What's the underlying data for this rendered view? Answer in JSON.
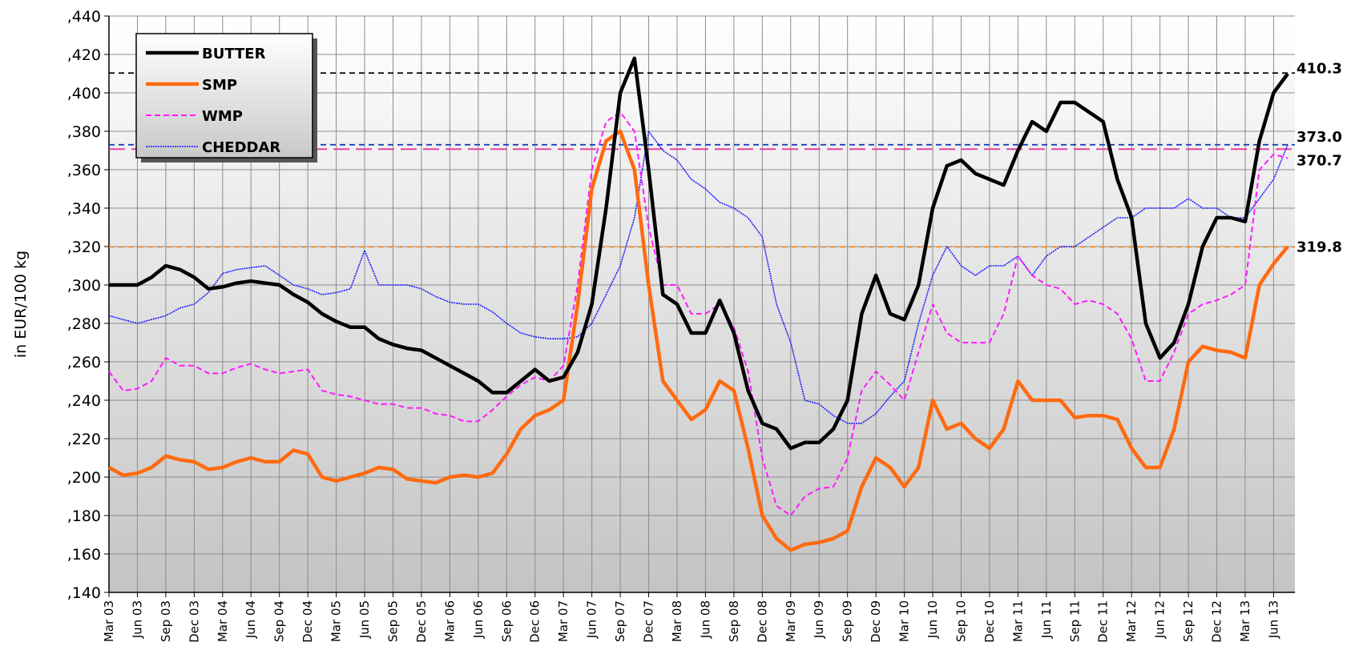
{
  "chart_data": {
    "type": "line",
    "y_label": "in EUR/100 kg",
    "ylim": [
      140,
      440
    ],
    "yticks": [
      {
        "value": 140,
        "label": ",140"
      },
      {
        "value": 160,
        "label": ",160"
      },
      {
        "value": 180,
        "label": ",180"
      },
      {
        "value": 200,
        "label": ",200"
      },
      {
        "value": 220,
        "label": ",220"
      },
      {
        "value": 240,
        "label": ",240"
      },
      {
        "value": 260,
        "label": ",260"
      },
      {
        "value": 280,
        "label": ",280"
      },
      {
        "value": 300,
        "label": ",300"
      },
      {
        "value": 320,
        "label": ",320"
      },
      {
        "value": 340,
        "label": ",340"
      },
      {
        "value": 360,
        "label": ",360"
      },
      {
        "value": 380,
        "label": ",380"
      },
      {
        "value": 400,
        "label": ",400"
      },
      {
        "value": 420,
        "label": ",420"
      },
      {
        "value": 440,
        "label": ",440"
      }
    ],
    "grid": true,
    "legend": "upper left",
    "categories": [
      "Mar 03",
      null,
      "Jun 03",
      null,
      "Sep 03",
      null,
      "Dec 03",
      null,
      "Mar 04",
      null,
      "Jun 04",
      null,
      "Sep 04",
      null,
      "Dec 04",
      null,
      "Mar 05",
      null,
      "Jun 05",
      null,
      "Sep 05",
      null,
      "Dec 05",
      null,
      "Mar 06",
      null,
      "Jun 06",
      null,
      "Sep 06",
      null,
      "Dec 06",
      null,
      "Mar 07",
      null,
      "Jun 07",
      null,
      "Sep 07",
      null,
      "Dec 07",
      null,
      "Mar 08",
      null,
      "Jun 08",
      null,
      "Sep 08",
      null,
      "Dec 08",
      null,
      "Mar 09",
      null,
      "Jun 09",
      null,
      "Sep 09",
      null,
      "Dec 09",
      null,
      "Mar 10",
      null,
      "Jun 10",
      null,
      "Sep 10",
      null,
      "Dec 10",
      null,
      "Mar 11",
      null,
      "Jun 11",
      null,
      "Sep 11",
      null,
      "Dec 11",
      null,
      "Mar 12",
      null,
      "Jun 12",
      null,
      "Sep 12",
      null,
      "Dec 12",
      null,
      "Mar 13",
      null,
      "Jun 13",
      null
    ],
    "series": [
      {
        "name": "BUTTER",
        "color": "#000000",
        "values": [
          300,
          300,
          300,
          304,
          310,
          308,
          304,
          298,
          299,
          301,
          302,
          301,
          300,
          295,
          291,
          285,
          281,
          278,
          278,
          272,
          269,
          267,
          266,
          262,
          258,
          254,
          250,
          244,
          244,
          250,
          256,
          250,
          252,
          265,
          290,
          340,
          400,
          418,
          360,
          295,
          290,
          275,
          275,
          292,
          275,
          245,
          228,
          225,
          215,
          218,
          218,
          225,
          240,
          285,
          305,
          285,
          282,
          300,
          340,
          362,
          365,
          358,
          355,
          352,
          370,
          385,
          380,
          395,
          395,
          390,
          385,
          355,
          335,
          280,
          262,
          270,
          290,
          320,
          335,
          335,
          333,
          375,
          400,
          410
        ]
      },
      {
        "name": "SMP",
        "color": "#ff6a10",
        "values": [
          205,
          201,
          202,
          205,
          211,
          209,
          208,
          204,
          205,
          208,
          210,
          208,
          208,
          214,
          212,
          200,
          198,
          200,
          202,
          205,
          204,
          199,
          198,
          197,
          200,
          201,
          200,
          202,
          212,
          225,
          232,
          235,
          240,
          290,
          350,
          375,
          380,
          360,
          300,
          250,
          240,
          230,
          235,
          250,
          245,
          215,
          180,
          168,
          162,
          165,
          166,
          168,
          172,
          195,
          210,
          205,
          195,
          205,
          240,
          225,
          228,
          220,
          215,
          225,
          250,
          240,
          240,
          240,
          231,
          232,
          232,
          230,
          215,
          205,
          205,
          225,
          260,
          268,
          266,
          265,
          262,
          300,
          311,
          320
        ]
      },
      {
        "name": "WMP",
        "color": "#ff1aff",
        "values": [
          255,
          245,
          246,
          250,
          262,
          258,
          258,
          254,
          254,
          257,
          259,
          256,
          254,
          255,
          256,
          245,
          243,
          242,
          240,
          238,
          238,
          236,
          236,
          233,
          232,
          229,
          229,
          235,
          242,
          248,
          252,
          250,
          258,
          300,
          360,
          385,
          390,
          380,
          330,
          300,
          300,
          285,
          285,
          290,
          278,
          255,
          210,
          185,
          180,
          190,
          194,
          195,
          210,
          245,
          255,
          248,
          240,
          265,
          290,
          275,
          270,
          270,
          270,
          285,
          315,
          305,
          300,
          298,
          290,
          292,
          290,
          285,
          272,
          250,
          250,
          265,
          285,
          290,
          292,
          295,
          300,
          360,
          368,
          366
        ]
      },
      {
        "name": "CHEDDAR",
        "color": "#1a1aff",
        "values": [
          284,
          282,
          280,
          282,
          284,
          288,
          290,
          296,
          306,
          308,
          309,
          310,
          305,
          300,
          298,
          295,
          296,
          298,
          318,
          300,
          300,
          300,
          298,
          294,
          291,
          290,
          290,
          286,
          280,
          275,
          273,
          272,
          272,
          273,
          280,
          295,
          310,
          335,
          380,
          370,
          365,
          355,
          350,
          343,
          340,
          335,
          325,
          290,
          270,
          240,
          238,
          232,
          228,
          228,
          233,
          242,
          250,
          280,
          305,
          320,
          310,
          305,
          310,
          310,
          315,
          305,
          315,
          320,
          320,
          325,
          330,
          335,
          335,
          340,
          340,
          340,
          345,
          340,
          340,
          335,
          335,
          345,
          355,
          373
        ]
      }
    ],
    "reference_lines": [
      {
        "value": 410.3,
        "label": "410.3",
        "color": "#000000"
      },
      {
        "value": 373.0,
        "label": "373.0",
        "color": "#1a3fbf"
      },
      {
        "value": 370.7,
        "label": "370.7",
        "color": "#e8359a"
      },
      {
        "value": 319.8,
        "label": "319.8",
        "color": "#f08a30"
      }
    ]
  }
}
